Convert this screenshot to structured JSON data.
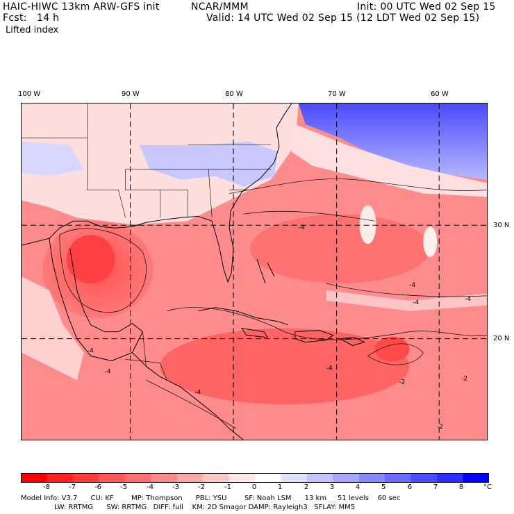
{
  "header": {
    "model_title": "HAIC-HIWC 13km ARW-GFS init",
    "org": "NCAR/MMM",
    "init": "Init: 00 UTC Wed 02 Sep 15",
    "fcst": "Fcst:   14 h",
    "valid": "Valid: 14 UTC Wed 02 Sep 15 (12 LDT Wed 02 Sep 15)",
    "field": "Lifted index"
  },
  "map": {
    "lon_labels": [
      "100 W",
      "90 W",
      "80 W",
      "70 W",
      "60 W"
    ],
    "lat_labels": [
      "30 N",
      "20 N"
    ],
    "contour_labels": [
      "-4",
      "-4",
      "-4",
      "-4",
      "-4",
      "-4",
      "-2",
      "-4",
      "-2",
      "-2",
      "-4"
    ]
  },
  "colorbar": {
    "labels": [
      "-8",
      "-7",
      "-6",
      "-5",
      "-4",
      "-3",
      "-2",
      "-1",
      "0",
      "1",
      "2",
      "3",
      "4",
      "5",
      "6",
      "7",
      "8"
    ],
    "unit": "°C",
    "colors": [
      "#ff0000",
      "#ff2020",
      "#ff3c3c",
      "#ff5656",
      "#ff7070",
      "#ff8a8a",
      "#ffa8a8",
      "#ffc8c8",
      "#ffe8e8",
      "#ffffff",
      "#e0e0ff",
      "#c4c4ff",
      "#a6a6ff",
      "#8888ff",
      "#6a6aff",
      "#4c4cff",
      "#2e2eff",
      "#0000ff"
    ]
  },
  "footer": {
    "line1": "Model Info: V3.7      CU: KF        MP: Thompson      PBL: YSU        SF: Noah LSM      13 km     51 levels    60 sec",
    "line2": "LW: RRTMG      SW: RRTMG   DIFF: full    KM: 2D Smagor DAMP: Rayleigh3   SFLAY: MM5"
  }
}
